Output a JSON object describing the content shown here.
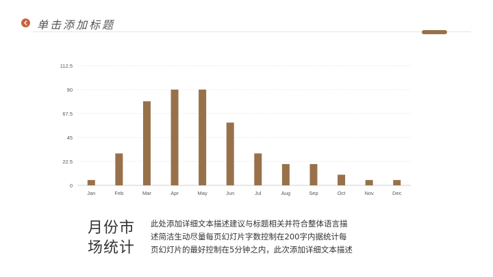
{
  "header": {
    "title": "单击添加标题",
    "back_icon": "chevron-left-icon",
    "accent_color": "#98714a",
    "back_color": "#c8643c"
  },
  "chart_data": {
    "type": "bar",
    "categories": [
      "Jan",
      "Feb",
      "Mar",
      "Apr",
      "May",
      "Jun",
      "Jul",
      "Aug",
      "Sep",
      "Oct",
      "Nov",
      "Dec"
    ],
    "values": [
      5,
      30,
      79,
      90,
      90,
      59,
      30,
      20,
      20,
      10,
      5,
      5
    ],
    "yticks": [
      "0",
      "22.5",
      "45",
      "67.5",
      "90",
      "112.5"
    ],
    "ylim": [
      0,
      112.5
    ],
    "grid": true,
    "bar_color": "#98714a"
  },
  "caption": {
    "title_lines": [
      "月份市",
      "场统计"
    ],
    "body_lines": [
      "此处添加详细文本描述建议与标题相关并符合整体语言描",
      "述简洁生动尽量每页幻灯片字数控制在200字内据统计每",
      "页幻灯片的最好控制在5分钟之内，此次添加详细文本描述"
    ]
  }
}
